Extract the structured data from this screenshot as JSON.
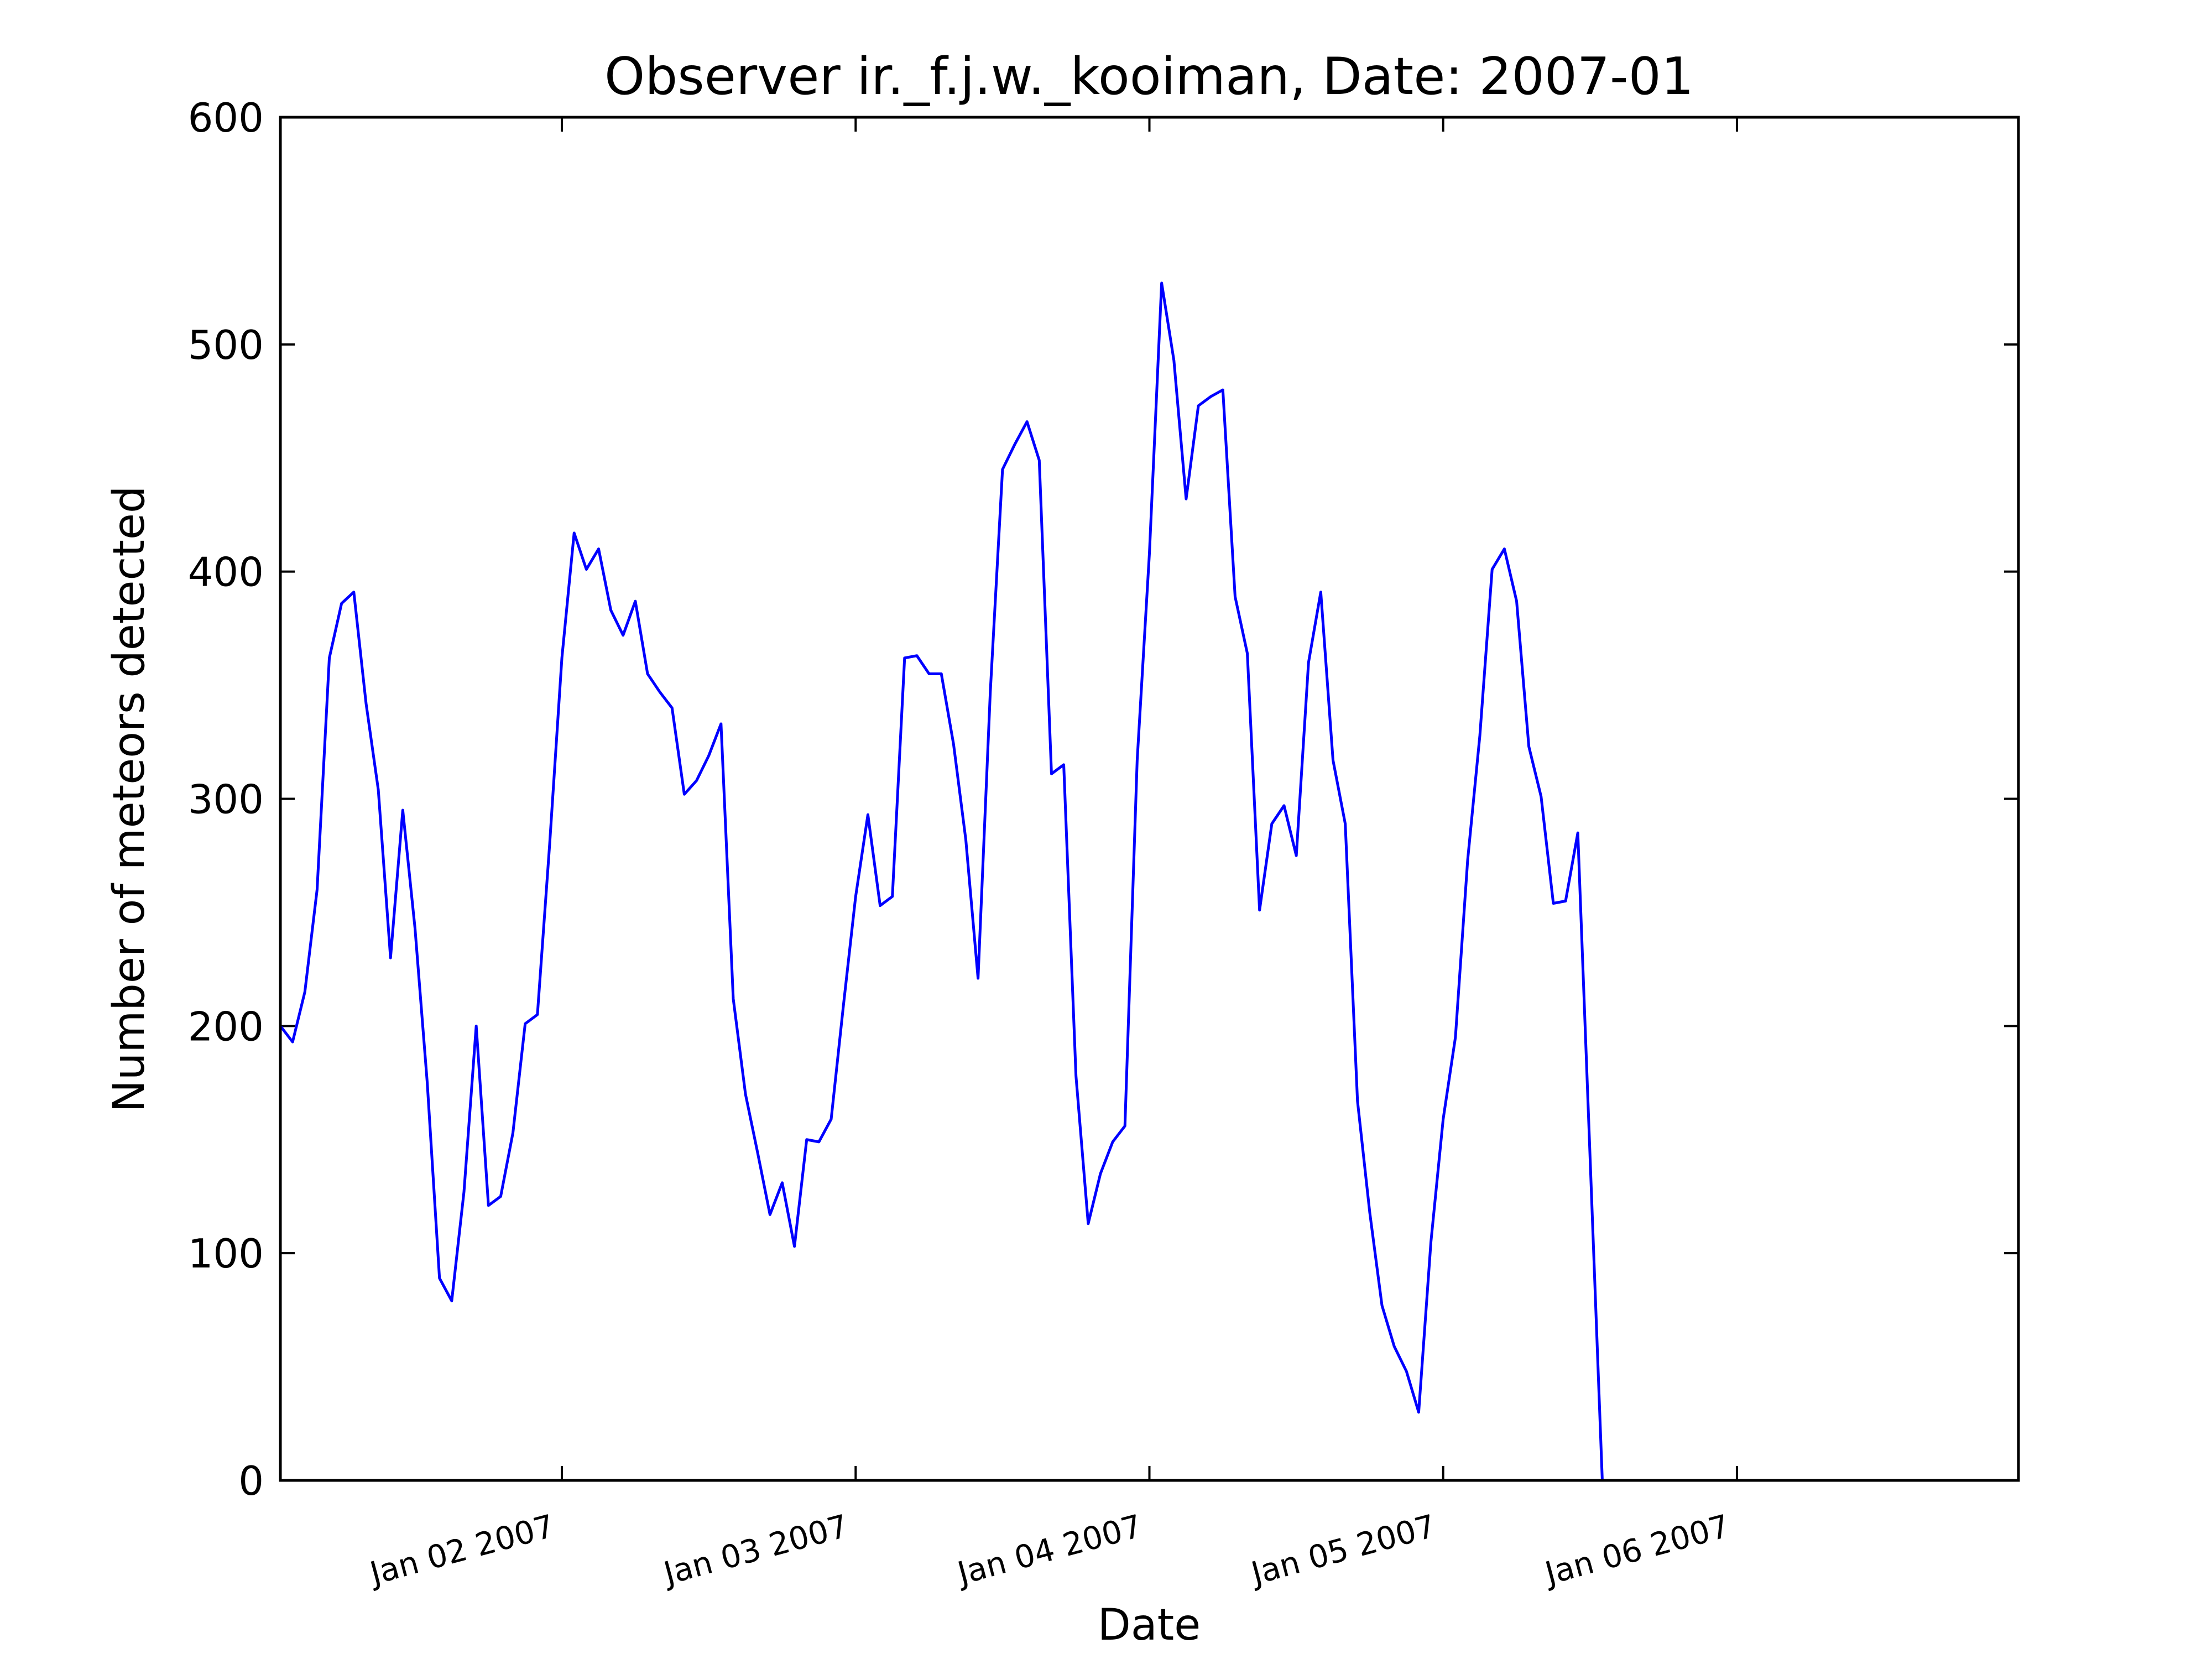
{
  "chart_data": {
    "type": "line",
    "title": "Observer ir._f.j.w._kooiman, Date: 2007-01",
    "xlabel": "Date",
    "ylabel": "Number of meteors detected",
    "color": "#0000ff",
    "x": [
      "2007-01-01 01:00",
      "2007-01-01 02:00",
      "2007-01-01 03:00",
      "2007-01-01 04:00",
      "2007-01-01 05:00",
      "2007-01-01 06:00",
      "2007-01-01 07:00",
      "2007-01-01 08:00",
      "2007-01-01 09:00",
      "2007-01-01 10:00",
      "2007-01-01 11:00",
      "2007-01-01 12:00",
      "2007-01-01 13:00",
      "2007-01-01 14:00",
      "2007-01-01 15:00",
      "2007-01-01 16:00",
      "2007-01-01 17:00",
      "2007-01-01 18:00",
      "2007-01-01 19:00",
      "2007-01-01 20:00",
      "2007-01-01 21:00",
      "2007-01-01 22:00",
      "2007-01-01 23:00",
      "2007-01-02 00:00",
      "2007-01-02 01:00",
      "2007-01-02 02:00",
      "2007-01-02 03:00",
      "2007-01-02 04:00",
      "2007-01-02 05:00",
      "2007-01-02 06:00",
      "2007-01-02 07:00",
      "2007-01-02 08:00",
      "2007-01-02 09:00",
      "2007-01-02 10:00",
      "2007-01-02 11:00",
      "2007-01-02 12:00",
      "2007-01-02 13:00",
      "2007-01-02 14:00",
      "2007-01-02 15:00",
      "2007-01-02 16:00",
      "2007-01-02 17:00",
      "2007-01-02 18:00",
      "2007-01-02 19:00",
      "2007-01-02 20:00",
      "2007-01-02 21:00",
      "2007-01-02 22:00",
      "2007-01-02 23:00",
      "2007-01-03 00:00",
      "2007-01-03 01:00",
      "2007-01-03 02:00",
      "2007-01-03 03:00",
      "2007-01-03 04:00",
      "2007-01-03 05:00",
      "2007-01-03 06:00",
      "2007-01-03 07:00",
      "2007-01-03 08:00",
      "2007-01-03 09:00",
      "2007-01-03 10:00",
      "2007-01-03 11:00",
      "2007-01-03 12:00",
      "2007-01-03 13:00",
      "2007-01-03 14:00",
      "2007-01-03 15:00",
      "2007-01-03 16:00",
      "2007-01-03 17:00",
      "2007-01-03 18:00",
      "2007-01-03 19:00",
      "2007-01-03 20:00",
      "2007-01-03 21:00",
      "2007-01-03 22:00",
      "2007-01-03 23:00",
      "2007-01-04 00:00",
      "2007-01-04 01:00",
      "2007-01-04 02:00",
      "2007-01-04 03:00",
      "2007-01-04 04:00",
      "2007-01-04 05:00",
      "2007-01-04 06:00",
      "2007-01-04 07:00",
      "2007-01-04 08:00",
      "2007-01-04 09:00",
      "2007-01-04 10:00",
      "2007-01-04 11:00",
      "2007-01-04 12:00",
      "2007-01-04 13:00",
      "2007-01-04 14:00",
      "2007-01-04 15:00",
      "2007-01-04 16:00",
      "2007-01-04 17:00",
      "2007-01-04 18:00",
      "2007-01-04 19:00",
      "2007-01-04 20:00",
      "2007-01-04 21:00",
      "2007-01-04 22:00",
      "2007-01-04 23:00",
      "2007-01-05 00:00",
      "2007-01-05 01:00",
      "2007-01-05 02:00",
      "2007-01-05 03:00",
      "2007-01-05 04:00",
      "2007-01-05 05:00",
      "2007-01-05 06:00",
      "2007-01-05 07:00",
      "2007-01-05 08:00",
      "2007-01-05 09:00",
      "2007-01-05 10:00",
      "2007-01-05 11:00",
      "2007-01-05 13:00"
    ],
    "values": [
      200,
      193,
      215,
      260,
      362,
      386,
      391,
      342,
      304,
      230,
      295,
      243,
      175,
      89,
      79,
      127,
      200,
      121,
      125,
      153,
      201,
      205,
      280,
      362,
      417,
      401,
      410,
      383,
      372,
      387,
      355,
      347,
      340,
      302,
      308,
      319,
      333,
      212,
      170,
      144,
      117,
      131,
      103,
      150,
      149,
      159,
      209,
      257,
      293,
      253,
      257,
      362,
      363,
      355,
      355,
      324,
      282,
      221,
      347,
      445,
      456,
      466,
      449,
      311,
      315,
      178,
      113,
      135,
      149,
      156,
      317,
      408,
      527,
      493,
      432,
      473,
      477,
      480,
      389,
      364,
      251,
      289,
      297,
      275,
      360,
      391,
      317,
      289,
      167,
      118,
      77,
      59,
      48,
      30,
      105,
      159,
      195,
      273,
      328,
      401,
      410,
      387,
      323,
      301,
      254,
      255,
      285,
      0
    ],
    "xlim": [
      "2007-01-01 01:00",
      "2007-01-06 23:00"
    ],
    "xticks": [
      {
        "value": "2007-01-02 00:00",
        "label": "Jan 02 2007"
      },
      {
        "value": "2007-01-03 00:00",
        "label": "Jan 03 2007"
      },
      {
        "value": "2007-01-04 00:00",
        "label": "Jan 04 2007"
      },
      {
        "value": "2007-01-05 00:00",
        "label": "Jan 05 2007"
      },
      {
        "value": "2007-01-06 00:00",
        "label": "Jan 06 2007"
      }
    ],
    "ylim": [
      0,
      600
    ],
    "yticks": [
      0,
      100,
      200,
      300,
      400,
      500,
      600
    ],
    "grid": false
  }
}
